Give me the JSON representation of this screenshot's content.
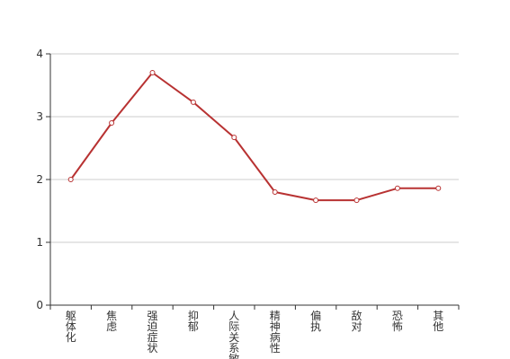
{
  "chart_data": {
    "type": "line",
    "title": "",
    "xlabel": "",
    "ylabel": "",
    "categories": [
      "躯体化",
      "焦虑",
      "强迫症状",
      "抑郁",
      "人际关系敏感",
      "精神病性",
      "偏执",
      "敌对",
      "恐怖",
      "其他"
    ],
    "series": [
      {
        "values": [
          2.0,
          2.9,
          3.7,
          3.23,
          2.67,
          1.8,
          1.67,
          1.67,
          1.86,
          1.86
        ]
      }
    ],
    "yticks": [
      "0",
      "1",
      "2",
      "3",
      "4"
    ],
    "ylim": [
      0,
      4
    ],
    "grid": true,
    "legend": "none",
    "colors": {
      "line": "#b83232",
      "marker_fill": "#ffffff",
      "grid": "#cccccc",
      "axis": "#333333"
    }
  }
}
